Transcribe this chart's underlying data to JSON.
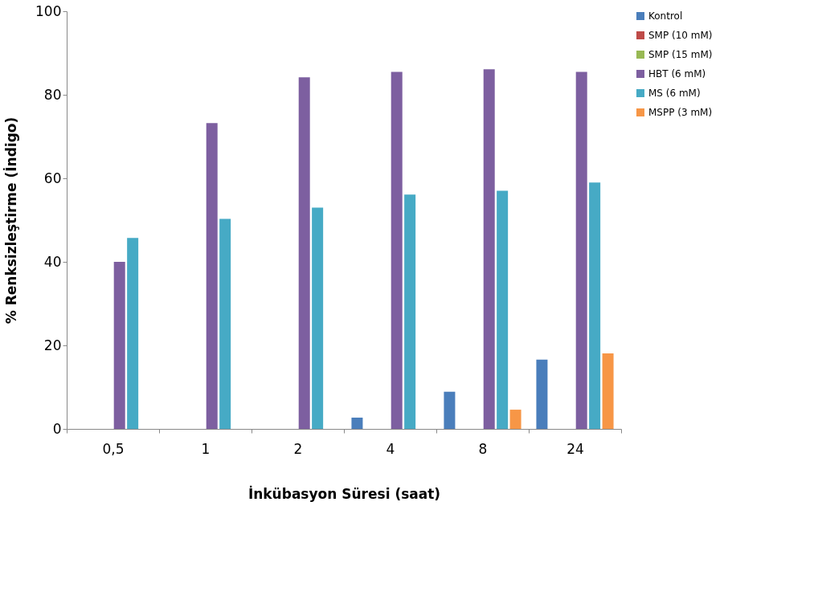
{
  "chart_data": {
    "type": "bar",
    "xlabel": "İnkübasyon Süresi (saat)",
    "ylabel": "% Renksizleştirme (İndigo)",
    "categories": [
      "0,5",
      "1",
      "2",
      "4",
      "8",
      "24"
    ],
    "series": [
      {
        "name": "Kontrol",
        "color": "#4a7ebb",
        "values": [
          null,
          null,
          null,
          2.7,
          8.9,
          16.6
        ]
      },
      {
        "name": "SMP (10 mM)",
        "color": "#be4b48",
        "values": [
          null,
          null,
          null,
          null,
          null,
          null
        ]
      },
      {
        "name": "SMP (15 mM)",
        "color": "#98b954",
        "values": [
          null,
          null,
          null,
          null,
          null,
          null
        ]
      },
      {
        "name": "HBT (6 mM)",
        "color": "#7d5fa0",
        "values": [
          40,
          73.2,
          84.2,
          85.5,
          86.1,
          85.5
        ]
      },
      {
        "name": "MS (6 mM)",
        "color": "#46aac5",
        "values": [
          45.7,
          50.3,
          53,
          56.1,
          57,
          59
        ]
      },
      {
        "name": "MSPP (3 mM)",
        "color": "#f79646",
        "values": [
          null,
          null,
          null,
          null,
          4.6,
          18.1
        ]
      }
    ],
    "ylim": [
      0,
      100
    ],
    "yticks": [
      0,
      20,
      40,
      60,
      80,
      100
    ],
    "grid": false,
    "legend": "right"
  }
}
